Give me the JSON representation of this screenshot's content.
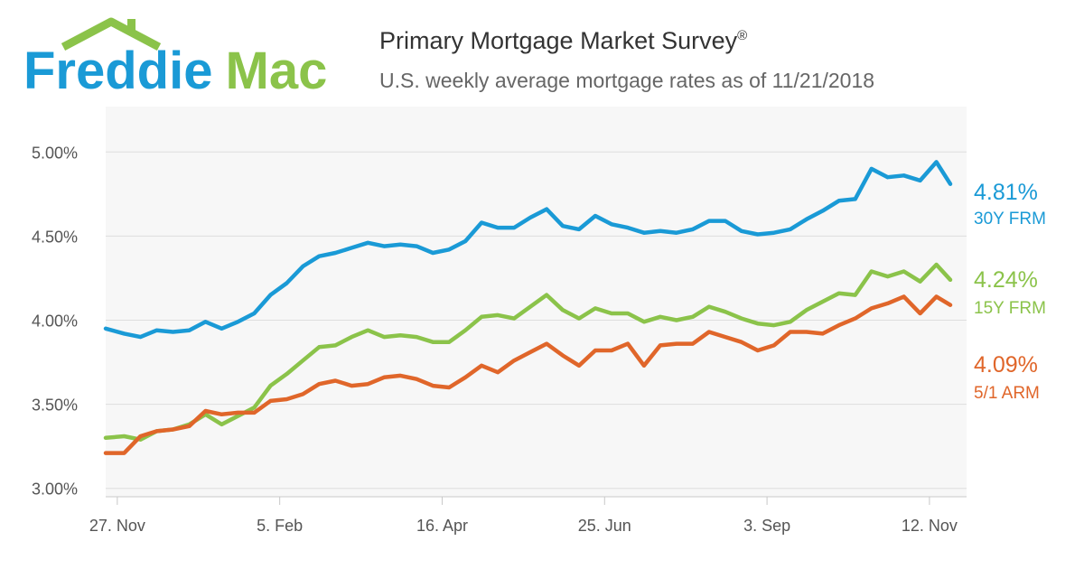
{
  "header": {
    "logo_text": "Freddie Mac",
    "title": "Primary Mortgage Market Survey",
    "title_mark": "®",
    "subtitle": "U.S. weekly average mortgage rates as of 11/21/2018"
  },
  "colors": {
    "logo_blue": "#1a9ad6",
    "logo_green": "#8bc34a",
    "plot_bg": "#f7f7f7"
  },
  "chart_data": {
    "type": "line",
    "x": [
      "2017-11-22",
      "2017-11-30",
      "2017-12-07",
      "2017-12-14",
      "2017-12-21",
      "2017-12-28",
      "2018-01-04",
      "2018-01-11",
      "2018-01-18",
      "2018-01-25",
      "2018-02-01",
      "2018-02-08",
      "2018-02-15",
      "2018-02-22",
      "2018-03-01",
      "2018-03-08",
      "2018-03-15",
      "2018-03-22",
      "2018-03-29",
      "2018-04-05",
      "2018-04-12",
      "2018-04-19",
      "2018-04-26",
      "2018-05-03",
      "2018-05-10",
      "2018-05-17",
      "2018-05-24",
      "2018-05-31",
      "2018-06-07",
      "2018-06-14",
      "2018-06-21",
      "2018-06-28",
      "2018-07-05",
      "2018-07-12",
      "2018-07-19",
      "2018-07-26",
      "2018-08-02",
      "2018-08-09",
      "2018-08-16",
      "2018-08-23",
      "2018-08-30",
      "2018-09-06",
      "2018-09-13",
      "2018-09-20",
      "2018-09-27",
      "2018-10-04",
      "2018-10-11",
      "2018-10-18",
      "2018-10-25",
      "2018-11-01",
      "2018-11-08",
      "2018-11-15",
      "2018-11-21"
    ],
    "x_ticks": [
      {
        "date": "2017-11-27",
        "label": "27. Nov"
      },
      {
        "date": "2018-02-05",
        "label": "5. Feb"
      },
      {
        "date": "2018-04-16",
        "label": "16. Apr"
      },
      {
        "date": "2018-06-25",
        "label": "25. Jun"
      },
      {
        "date": "2018-09-03",
        "label": "3. Sep"
      },
      {
        "date": "2018-11-12",
        "label": "12. Nov"
      }
    ],
    "xlim": [
      "2017-11-22",
      "2018-11-28"
    ],
    "ylim": [
      2.95,
      5.27
    ],
    "y_ticks": [
      {
        "value": 3.0,
        "label": "3.00%"
      },
      {
        "value": 3.5,
        "label": "3.50%"
      },
      {
        "value": 4.0,
        "label": "4.00%"
      },
      {
        "value": 4.5,
        "label": "4.50%"
      },
      {
        "value": 5.0,
        "label": "5.00%"
      }
    ],
    "grid": true,
    "legend": "right end labels",
    "series": [
      {
        "name": "30Y FRM",
        "end_label": "4.81%",
        "color": "#1a9ad6",
        "values": [
          3.95,
          3.92,
          3.9,
          3.94,
          3.93,
          3.94,
          3.99,
          3.95,
          3.99,
          4.04,
          4.15,
          4.22,
          4.32,
          4.38,
          4.4,
          4.43,
          4.46,
          4.44,
          4.45,
          4.44,
          4.4,
          4.42,
          4.47,
          4.58,
          4.55,
          4.55,
          4.61,
          4.66,
          4.56,
          4.54,
          4.62,
          4.57,
          4.55,
          4.52,
          4.53,
          4.52,
          4.54,
          4.59,
          4.59,
          4.53,
          4.51,
          4.52,
          4.54,
          4.6,
          4.65,
          4.71,
          4.72,
          4.9,
          4.85,
          4.86,
          4.83,
          4.94,
          4.81
        ]
      },
      {
        "name": "15Y FRM",
        "end_label": "4.24%",
        "color": "#8bc34a",
        "values": [
          3.3,
          3.31,
          3.29,
          3.34,
          3.35,
          3.38,
          3.44,
          3.38,
          3.43,
          3.48,
          3.61,
          3.68,
          3.76,
          3.84,
          3.85,
          3.9,
          3.94,
          3.9,
          3.91,
          3.9,
          3.87,
          3.87,
          3.94,
          4.02,
          4.03,
          4.01,
          4.08,
          4.15,
          4.06,
          4.01,
          4.07,
          4.04,
          4.04,
          3.99,
          4.02,
          4.0,
          4.02,
          4.08,
          4.05,
          4.01,
          3.98,
          3.97,
          3.99,
          4.06,
          4.11,
          4.16,
          4.15,
          4.29,
          4.26,
          4.29,
          4.23,
          4.33,
          4.24
        ]
      },
      {
        "name": "5/1 ARM",
        "end_label": "4.09%",
        "color": "#e0662a",
        "values": [
          3.21,
          3.21,
          3.31,
          3.34,
          3.35,
          3.37,
          3.46,
          3.44,
          3.45,
          3.45,
          3.52,
          3.53,
          3.56,
          3.62,
          3.64,
          3.61,
          3.62,
          3.66,
          3.67,
          3.65,
          3.61,
          3.6,
          3.66,
          3.73,
          3.69,
          3.76,
          3.81,
          3.86,
          3.79,
          3.73,
          3.82,
          3.82,
          3.86,
          3.73,
          3.85,
          3.86,
          3.86,
          3.93,
          3.9,
          3.87,
          3.82,
          3.85,
          3.93,
          3.93,
          3.92,
          3.97,
          4.01,
          4.07,
          4.1,
          4.14,
          4.04,
          4.14,
          4.09
        ]
      }
    ]
  }
}
